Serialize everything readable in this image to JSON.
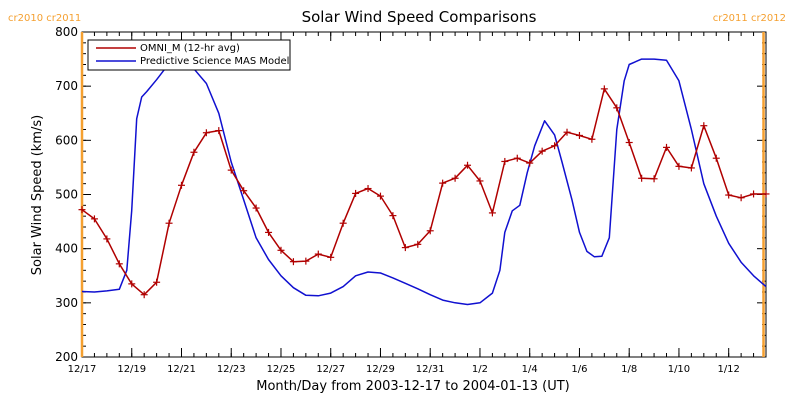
{
  "chart_data": {
    "type": "line",
    "title": "Solar Wind Speed Comparisons",
    "xlabel": "Month/Day from 2003-12-17 to 2004-01-13 (UT)",
    "ylabel": "Solar Wind Speed (km/s)",
    "xlim": [
      0,
      27.5
    ],
    "ylim": [
      200,
      800
    ],
    "x_ticks": [
      {
        "x": 0,
        "label": "12/17"
      },
      {
        "x": 2,
        "label": "12/19"
      },
      {
        "x": 4,
        "label": "12/21"
      },
      {
        "x": 6,
        "label": "12/23"
      },
      {
        "x": 8,
        "label": "12/25"
      },
      {
        "x": 10,
        "label": "12/27"
      },
      {
        "x": 12,
        "label": "12/29"
      },
      {
        "x": 14,
        "label": "12/31"
      },
      {
        "x": 16,
        "label": "1/2"
      },
      {
        "x": 18,
        "label": "1/4"
      },
      {
        "x": 20,
        "label": "1/6"
      },
      {
        "x": 22,
        "label": "1/8"
      },
      {
        "x": 24,
        "label": "1/10"
      },
      {
        "x": 26,
        "label": "1/12"
      }
    ],
    "y_ticks": [
      200,
      300,
      400,
      500,
      600,
      700,
      800
    ],
    "carrington_markers": [
      {
        "x": 0.0,
        "label": "cr2010 cr2011",
        "side": "left",
        "color": "#f5a030"
      },
      {
        "x": 27.4,
        "label": "cr2011 cr2012",
        "side": "right",
        "color": "#f5a030"
      }
    ],
    "legend_position": "top-left",
    "series": [
      {
        "name": "OMNI_M (12-hr avg)",
        "color": "#b00000",
        "marker": "plus",
        "x": [
          0.0,
          0.5,
          1.0,
          1.5,
          2.0,
          2.5,
          3.0,
          3.5,
          4.0,
          4.5,
          5.0,
          5.5,
          6.0,
          6.5,
          7.0,
          7.5,
          8.0,
          8.5,
          9.0,
          9.5,
          10.0,
          10.5,
          11.0,
          11.5,
          12.0,
          12.5,
          13.0,
          13.5,
          14.0,
          14.5,
          15.0,
          15.5,
          16.0,
          16.5,
          17.0,
          17.5,
          18.0,
          18.5,
          19.0,
          19.5,
          20.0,
          20.5,
          21.0,
          21.5,
          22.0,
          22.5,
          23.0,
          23.5,
          24.0,
          24.5,
          25.0,
          25.5,
          26.0,
          26.5,
          27.0,
          27.5
        ],
        "y": [
          472,
          455,
          418,
          372,
          335,
          315,
          338,
          447,
          517,
          578,
          614,
          618,
          545,
          507,
          475,
          430,
          397,
          376,
          377,
          390,
          384,
          447,
          502,
          511,
          497,
          461,
          402,
          408,
          433,
          521,
          530,
          554,
          525,
          466,
          561,
          567,
          558,
          580,
          590,
          615,
          609,
          602,
          695,
          660,
          596,
          530,
          529,
          587,
          552,
          549,
          627,
          567,
          499,
          494,
          501,
          501
        ]
      },
      {
        "name": "Predictive Science MAS Model",
        "color": "#1010d0",
        "marker": "none",
        "x": [
          0.0,
          0.5,
          1.0,
          1.5,
          1.8,
          2.0,
          2.2,
          2.4,
          2.6,
          3.0,
          3.5,
          4.0,
          4.5,
          5.0,
          5.5,
          6.0,
          6.5,
          7.0,
          7.5,
          8.0,
          8.5,
          9.0,
          9.5,
          10.0,
          10.5,
          11.0,
          11.5,
          12.0,
          12.5,
          13.0,
          13.5,
          14.0,
          14.5,
          15.0,
          15.5,
          16.0,
          16.5,
          16.8,
          17.0,
          17.3,
          17.6,
          17.9,
          18.2,
          18.6,
          19.0,
          19.3,
          19.7,
          20.0,
          20.3,
          20.6,
          20.9,
          21.2,
          21.5,
          21.8,
          22.0,
          22.5,
          23.0,
          23.5,
          24.0,
          24.5,
          25.0,
          25.5,
          26.0,
          26.5,
          27.0,
          27.5
        ],
        "y": [
          321,
          320,
          322,
          325,
          360,
          470,
          640,
          680,
          690,
          712,
          742,
          745,
          732,
          705,
          650,
          560,
          490,
          420,
          380,
          350,
          328,
          314,
          313,
          318,
          330,
          350,
          357,
          355,
          346,
          336,
          326,
          315,
          305,
          300,
          297,
          300,
          318,
          360,
          430,
          470,
          480,
          540,
          590,
          636,
          610,
          560,
          490,
          430,
          395,
          385,
          386,
          420,
          620,
          710,
          740,
          750,
          750,
          748,
          710,
          620,
          520,
          460,
          410,
          375,
          350,
          330
        ]
      }
    ]
  }
}
